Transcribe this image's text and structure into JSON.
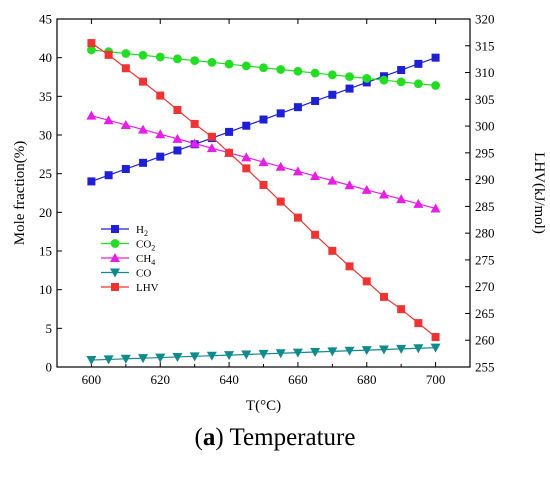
{
  "chart_data": {
    "type": "line",
    "xlabel": "T(°C)",
    "ylabel": "Mole fraction(%)",
    "y2label": "LHV(kJ/mol)",
    "xlim": [
      590,
      710
    ],
    "ylim": [
      0,
      45
    ],
    "y2lim": [
      255,
      320
    ],
    "xticks": [
      600,
      620,
      640,
      660,
      680,
      700
    ],
    "yticks": [
      0,
      5,
      10,
      15,
      20,
      25,
      30,
      35,
      40,
      45
    ],
    "y2ticks": [
      255,
      260,
      265,
      270,
      275,
      280,
      285,
      290,
      295,
      300,
      305,
      310,
      315,
      320
    ],
    "x": [
      600,
      605,
      610,
      615,
      620,
      625,
      630,
      635,
      640,
      645,
      650,
      655,
      660,
      665,
      670,
      675,
      680,
      685,
      690,
      695,
      700
    ],
    "series": [
      {
        "name": "H2",
        "legend_main": "H",
        "legend_sub": "2",
        "axis": "left",
        "marker": "square",
        "color": "#1f1fd6",
        "values": [
          24.0,
          24.8,
          25.6,
          26.4,
          27.2,
          28.0,
          28.8,
          29.6,
          30.4,
          31.2,
          32.0,
          32.8,
          33.6,
          34.4,
          35.2,
          36.0,
          36.8,
          37.6,
          38.4,
          39.2,
          40.0
        ]
      },
      {
        "name": "CO2",
        "legend_main": "CO",
        "legend_sub": "2",
        "axis": "left",
        "marker": "circle",
        "color": "#22dd22",
        "values": [
          41.0,
          40.77,
          40.54,
          40.31,
          40.08,
          39.85,
          39.62,
          39.39,
          39.16,
          38.93,
          38.7,
          38.47,
          38.24,
          38.01,
          37.78,
          37.55,
          37.32,
          37.09,
          36.86,
          36.63,
          36.4
        ]
      },
      {
        "name": "CH4",
        "legend_main": "CH",
        "legend_sub": "4",
        "axis": "left",
        "marker": "triangle-up",
        "color": "#e61ee6",
        "values": [
          32.5,
          31.9,
          31.3,
          30.7,
          30.1,
          29.5,
          28.9,
          28.3,
          27.7,
          27.1,
          26.5,
          25.9,
          25.3,
          24.7,
          24.1,
          23.5,
          22.9,
          22.3,
          21.7,
          21.1,
          20.5
        ]
      },
      {
        "name": "CO",
        "legend_main": "CO",
        "legend_sub": "",
        "axis": "left",
        "marker": "triangle-down",
        "color": "#108a8a",
        "values": [
          0.9,
          0.98,
          1.06,
          1.14,
          1.22,
          1.3,
          1.38,
          1.46,
          1.54,
          1.62,
          1.7,
          1.78,
          1.86,
          1.94,
          2.02,
          2.1,
          2.18,
          2.26,
          2.34,
          2.42,
          2.5
        ]
      },
      {
        "name": "LHV",
        "legend_main": "LHV",
        "legend_sub": "",
        "axis": "right",
        "marker": "square",
        "color": "#ee3333",
        "values": [
          315.5,
          313.3,
          310.8,
          308.3,
          305.7,
          303.0,
          300.4,
          298.0,
          295.0,
          292.1,
          289.0,
          285.9,
          282.9,
          279.7,
          276.7,
          273.8,
          271.0,
          268.1,
          265.8,
          263.2,
          260.6
        ]
      }
    ],
    "legend_position": "middle-left",
    "grid": false
  },
  "caption": {
    "letter": "a",
    "text": "Temperature"
  }
}
